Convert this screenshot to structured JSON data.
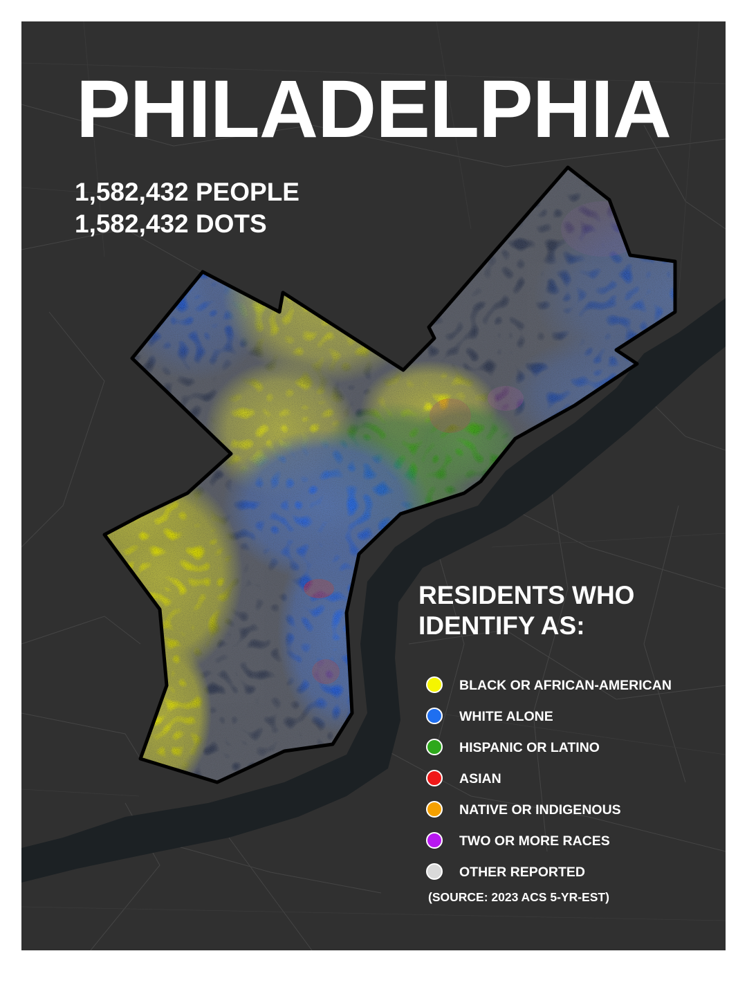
{
  "title": "PHILADELPHIA",
  "stats": {
    "people": "1,582,432 PEOPLE",
    "dots": "1,582,432 DOTS"
  },
  "legend": {
    "heading_line1": "RESIDENTS WHO",
    "heading_line2": "IDENTIFY AS:",
    "items": [
      {
        "label": "BLACK OR AFRICAN-AMERICAN",
        "color": "#f5f500"
      },
      {
        "label": "WHITE ALONE",
        "color": "#1f6ff0"
      },
      {
        "label": "HISPANIC OR LATINO",
        "color": "#2ea81c"
      },
      {
        "label": "ASIAN",
        "color": "#f01818"
      },
      {
        "label": "NATIVE OR INDIGENOUS",
        "color": "#f5a000"
      },
      {
        "label": "TWO OR MORE RACES",
        "color": "#b818f0"
      },
      {
        "label": "OTHER REPORTED",
        "color": "#d9d9d9"
      }
    ]
  },
  "source": "(SOURCE: 2023 ACS 5-YR-EST)",
  "colors": {
    "background": "#303030",
    "water": "#1c2124",
    "roads": "#454545",
    "boundary": "#000000",
    "frame": "#ffffff"
  }
}
